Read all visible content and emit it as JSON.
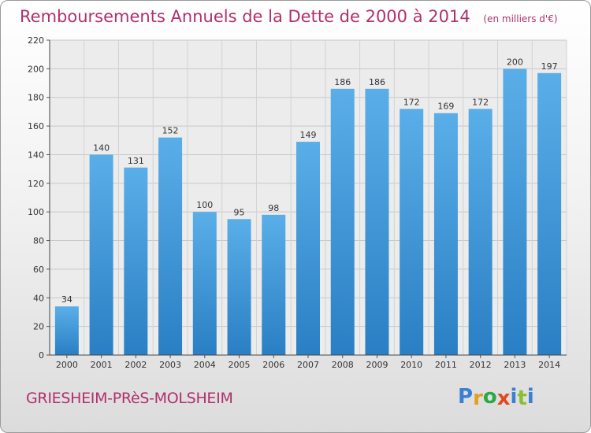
{
  "header": {
    "title": "Remboursements Annuels de la Dette de 2000 à 2014",
    "unit": "(en milliers d'€)"
  },
  "footer": {
    "city": "GRIESHEIM-PRèS-MOLSHEIM",
    "logo": "Proxiti"
  },
  "colors": {
    "accent": "#b0306e",
    "bar_top": "#5aaee8",
    "bar_bottom": "#2a7fc4",
    "logo_letters": [
      "#3a7fd0",
      "#e0a020",
      "#2aa84a",
      "#e04a20",
      "#3a7fd0",
      "#8ac030",
      "#3a7fd0"
    ]
  },
  "chart_data": {
    "type": "bar",
    "title": "Remboursements Annuels de la Dette de 2000 à 2014",
    "xlabel": "",
    "ylabel": "",
    "ylim": [
      0,
      220
    ],
    "yticks": [
      0,
      20,
      40,
      60,
      80,
      100,
      120,
      140,
      160,
      180,
      200,
      220
    ],
    "grid": true,
    "legend": "none",
    "categories": [
      "2000",
      "2001",
      "2002",
      "2003",
      "2004",
      "2005",
      "2006",
      "2007",
      "2008",
      "2009",
      "2010",
      "2011",
      "2012",
      "2013",
      "2014"
    ],
    "values": [
      34,
      140,
      131,
      152,
      100,
      95,
      98,
      149,
      186,
      186,
      172,
      169,
      172,
      200,
      197
    ]
  }
}
